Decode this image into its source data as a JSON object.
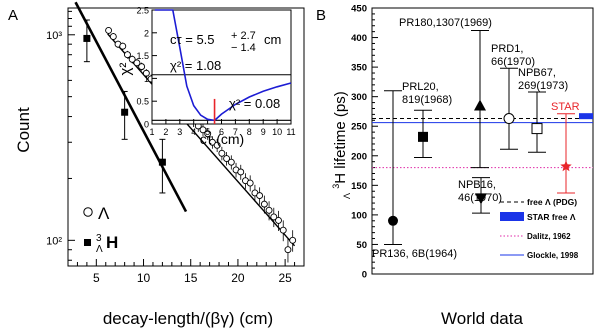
{
  "chart_data": [
    {
      "panel_letter": "A",
      "type": "scatter",
      "xlabel": "decay-length/(βγ) (cm)",
      "ylabel": "Count",
      "xlim": [
        2,
        27
      ],
      "ylim": [
        75,
        1350
      ],
      "yscale": "log",
      "x_ticks": [
        5,
        10,
        15,
        20,
        25
      ],
      "y_ticks": [
        {
          "value": 100,
          "label": "10²"
        },
        {
          "value": 1000,
          "label": "10³"
        }
      ],
      "series": [
        {
          "name": "Λ",
          "marker": "open-circle",
          "x": [
            6.3,
            6.8,
            7.3,
            7.8,
            8.3,
            8.8,
            9.3,
            9.8,
            10.3,
            10.8,
            11.3,
            11.8,
            12.3,
            12.8,
            13.3,
            13.8,
            14.3,
            14.8,
            15.3,
            15.8,
            16.3,
            16.8,
            17.3,
            17.8,
            18.3,
            18.8,
            19.3,
            19.8,
            20.3,
            20.8,
            21.3,
            21.8,
            22.3,
            22.8,
            23.3,
            23.8,
            24.3,
            24.8,
            25.3,
            25.8
          ],
          "y": [
            1050,
            980,
            900,
            880,
            800,
            760,
            730,
            700,
            650,
            610,
            590,
            560,
            520,
            500,
            470,
            450,
            420,
            400,
            380,
            360,
            345,
            330,
            300,
            290,
            265,
            250,
            240,
            220,
            215,
            195,
            190,
            170,
            165,
            150,
            140,
            130,
            125,
            112,
            90,
            100
          ],
          "errors": [
            40,
            40,
            38,
            37,
            35,
            34,
            33,
            32,
            31,
            30,
            30,
            29,
            28,
            27,
            27,
            26,
            25,
            24,
            24,
            23,
            23,
            22,
            21,
            21,
            20,
            19,
            19,
            18,
            18,
            17,
            17,
            16,
            16,
            15,
            15,
            14,
            14,
            13,
            12,
            12
          ]
        },
        {
          "name": "³ΛH",
          "marker": "filled-square",
          "x": [
            4,
            8,
            12
          ],
          "y": [
            960,
            420,
            240
          ],
          "errors": [
            220,
            110,
            70
          ]
        }
      ],
      "fit_lines": [
        {
          "series": "Λ",
          "x": [
            6.2,
            26
          ],
          "y": [
            1010,
            94
          ]
        },
        {
          "series": "³ΛH",
          "x": [
            2.8,
            14.5
          ],
          "y": [
            1440,
            138
          ]
        }
      ],
      "legend": [
        {
          "marker": "open-circle",
          "label": "Λ"
        },
        {
          "marker": "filled-square",
          "label_pre": "3",
          "label_sub": "Λ",
          "label_main": "H"
        }
      ],
      "inset": {
        "type": "line",
        "xlabel": "cτ (cm)",
        "ylabel": "χ²",
        "xlim": [
          1,
          11
        ],
        "ylim": [
          0,
          2.5
        ],
        "x_ticks": [
          1,
          2,
          3,
          4,
          5,
          6,
          7,
          8,
          9,
          10,
          11
        ],
        "y_ticks": [
          0,
          0.5,
          1,
          1.5,
          2,
          2.5
        ],
        "x_tick_labels": [
          "1",
          "2",
          "3",
          "4",
          "5",
          "6",
          "7",
          "8",
          "9",
          "10",
          "11"
        ],
        "y_tick_labels": [
          "0",
          "0.5",
          "1",
          "1.5",
          "2",
          "2.5"
        ],
        "curve_min_x": 5.5,
        "curve_min_y": 0.08,
        "curve_x_points": [
          1.2,
          1.6,
          2,
          2.5,
          3,
          3.5,
          4,
          4.5,
          5,
          5.5,
          6,
          7,
          8,
          9,
          10,
          11
        ],
        "horizontal_lines": [
          1.08,
          0.08
        ],
        "marker_x": 5.5,
        "fit_label_main": "cτ = 5.5",
        "fit_err_up": "+ 2.7",
        "fit_err_down": "− 1.4",
        "fit_unit": "cm",
        "chi2_label_1": "χ² = 1.08",
        "chi2_label_2": "χ² = 0.08"
      }
    },
    {
      "panel_letter": "B",
      "type": "scatter",
      "xlabel": "World data",
      "ylabel_pre": "3",
      "ylabel_sub": "Λ",
      "ylabel_main": "H lifetime (ps)",
      "ylim": [
        0,
        450
      ],
      "y_ticks": [
        0,
        50,
        100,
        150,
        200,
        250,
        300,
        350,
        400,
        450
      ],
      "points": [
        {
          "label": "PR136, 6B(1964)",
          "marker": "filled-circle",
          "y": 90,
          "err_up": 220,
          "err_down": 40
        },
        {
          "label": "PRL20, 819(1968)",
          "marker": "filled-square",
          "y": 232,
          "err_up": 45,
          "err_down": 35
        },
        {
          "label": "PR180,1307(1969)",
          "marker": "filled-triangle-up",
          "y": 285,
          "err_up": 127,
          "err_down": 105
        },
        {
          "label": "NPB16, 46(1970)",
          "marker": "filled-triangle-down",
          "y": 128,
          "err_up": 35,
          "err_down": 25
        },
        {
          "label": "PRD1, 66(1970)",
          "marker": "open-circle",
          "y": 263,
          "err_up": 85,
          "err_down": 52
        },
        {
          "label": "NPB67, 269(1973)",
          "marker": "open-square",
          "y": 246,
          "err_up": 62,
          "err_down": 40
        },
        {
          "label": "STAR",
          "marker": "red-star",
          "color": "#e8242a",
          "y": 182,
          "err_up": 89,
          "err_down": 45
        }
      ],
      "reference_lines": [
        {
          "label": "free Λ (PDG)",
          "value": 263,
          "style": "dashed",
          "color": "#000000"
        },
        {
          "label": "STAR free Λ",
          "value": 267,
          "style": "band",
          "color": "#1a34e8"
        },
        {
          "label": "Dalitz, 1962",
          "value": 180,
          "style": "dotted",
          "color": "#e02aa8"
        },
        {
          "label": "Glockle, 1998",
          "value": 256,
          "style": "solid",
          "color": "#1a34e8"
        }
      ]
    }
  ]
}
